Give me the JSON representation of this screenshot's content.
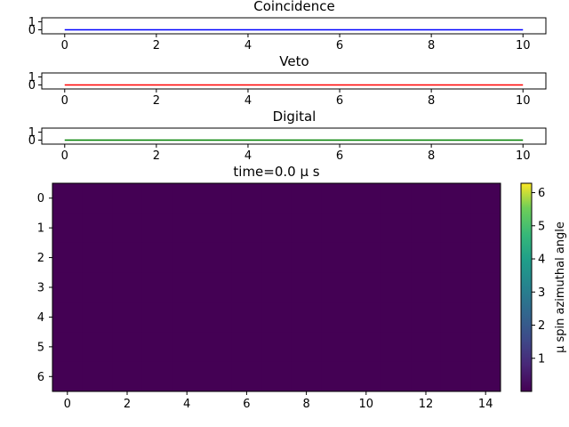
{
  "chart_data": [
    {
      "type": "line",
      "title": "Coincidence",
      "xlim": [
        -0.5,
        10.5
      ],
      "ylim": [
        -0.5,
        1.5
      ],
      "xticks": [
        "0",
        "2",
        "4",
        "6",
        "8",
        "10"
      ],
      "yticks": [
        "0",
        "1"
      ],
      "series": [
        {
          "color": "#0000ff",
          "x": [
            0,
            10
          ],
          "y": [
            0,
            0
          ]
        }
      ]
    },
    {
      "type": "line",
      "title": "Veto",
      "xlim": [
        -0.5,
        10.5
      ],
      "ylim": [
        -0.5,
        1.5
      ],
      "xticks": [
        "0",
        "2",
        "4",
        "6",
        "8",
        "10"
      ],
      "yticks": [
        "0",
        "1"
      ],
      "series": [
        {
          "color": "#ff0000",
          "x": [
            0,
            10
          ],
          "y": [
            0,
            0
          ]
        }
      ]
    },
    {
      "type": "line",
      "title": "Digital",
      "xlim": [
        -0.5,
        10.5
      ],
      "ylim": [
        -0.5,
        1.5
      ],
      "xticks": [
        "0",
        "2",
        "4",
        "6",
        "8",
        "10"
      ],
      "yticks": [
        "0",
        "1"
      ],
      "series": [
        {
          "color": "#008000",
          "x": [
            0,
            10
          ],
          "y": [
            0,
            0
          ]
        }
      ]
    },
    {
      "type": "heatmap",
      "title": "time=0.0 μ s",
      "rows": 7,
      "cols": 15,
      "xlim": [
        -0.5,
        14.5
      ],
      "ylim": [
        6.5,
        -0.5
      ],
      "xticks": [
        "0",
        "2",
        "4",
        "6",
        "8",
        "10",
        "12",
        "14"
      ],
      "yticks": [
        "0",
        "1",
        "2",
        "3",
        "4",
        "5",
        "6"
      ],
      "value": 0,
      "fill_color": "#440154",
      "colorbar": {
        "label": "μ spin azimuthal angle",
        "range": [
          0,
          6.283
        ],
        "ticks": [
          "1",
          "2",
          "3",
          "4",
          "5",
          "6"
        ],
        "colormap": "viridis"
      }
    }
  ]
}
